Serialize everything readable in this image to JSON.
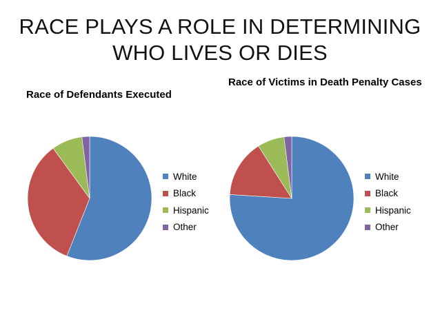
{
  "title": {
    "line1": "RACE PLAYS A ROLE IN DETERMINING",
    "line2": "WHO LIVES OR DIES"
  },
  "colors": {
    "White": "#4F81BD",
    "Black": "#C0504D",
    "Hispanic": "#9BBB59",
    "Other": "#8064A2"
  },
  "chart_data": [
    {
      "type": "pie",
      "title": "Race of Defendants Executed",
      "categories": [
        "White",
        "Black",
        "Hispanic",
        "Other"
      ],
      "values": [
        56,
        34,
        8,
        2
      ],
      "legend": "right"
    },
    {
      "type": "pie",
      "title": "Race of Victims in Death Penalty Cases",
      "categories": [
        "White",
        "Black",
        "Hispanic",
        "Other"
      ],
      "values": [
        76,
        15,
        7,
        2
      ],
      "legend": "right"
    }
  ]
}
